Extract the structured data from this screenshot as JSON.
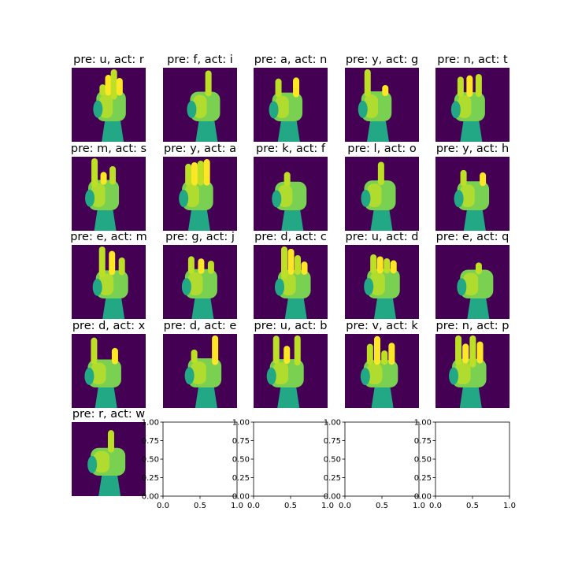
{
  "figure": {
    "background": "#ffffff",
    "colormap": "viridis",
    "image_background": "#440154",
    "hand_colors": [
      "#2a788e",
      "#22a884",
      "#7ad151",
      "#bddf26",
      "#fde725"
    ]
  },
  "panels": [
    {
      "title": "pre: u, act: r",
      "icon": "hand-sign-r"
    },
    {
      "title": "pre: f, act: i",
      "icon": "hand-sign-i"
    },
    {
      "title": "pre: a, act: n",
      "icon": "hand-sign-n"
    },
    {
      "title": "pre: y, act: g",
      "icon": "hand-sign-g"
    },
    {
      "title": "pre: n, act: t",
      "icon": "hand-sign-t"
    },
    {
      "title": "pre: m, act: s",
      "icon": "hand-sign-s"
    },
    {
      "title": "pre: y, act: a",
      "icon": "hand-sign-a"
    },
    {
      "title": "pre: k, act: f",
      "icon": "hand-sign-f"
    },
    {
      "title": "pre: l, act: o",
      "icon": "hand-sign-o"
    },
    {
      "title": "pre: y, act: h",
      "icon": "hand-sign-h"
    },
    {
      "title": "pre: e, act: m",
      "icon": "hand-sign-m"
    },
    {
      "title": "pre: g, act: j",
      "icon": "hand-sign-j"
    },
    {
      "title": "pre: d, act: c",
      "icon": "hand-sign-c"
    },
    {
      "title": "pre: u, act: d",
      "icon": "hand-sign-d"
    },
    {
      "title": "pre: e, act: q",
      "icon": "hand-sign-q"
    },
    {
      "title": "pre: d, act: x",
      "icon": "hand-sign-x"
    },
    {
      "title": "pre: d, act: e",
      "icon": "hand-sign-e"
    },
    {
      "title": "pre: u, act: b",
      "icon": "hand-sign-b"
    },
    {
      "title": "pre: v, act: k",
      "icon": "hand-sign-k"
    },
    {
      "title": "pre: n, act: p",
      "icon": "hand-sign-p"
    },
    {
      "title": "pre: r, act: w",
      "icon": "hand-sign-w"
    }
  ],
  "empty_axes": {
    "count": 4,
    "xlim": [
      0.0,
      1.0
    ],
    "ylim": [
      0.0,
      1.0
    ],
    "xticks": [
      "0.0",
      "0.5",
      "1.0"
    ],
    "yticks": [
      "0.00",
      "0.25",
      "0.50",
      "0.75",
      "1.00"
    ]
  },
  "last_axes": {
    "xticks": [
      "0.0",
      "0.5",
      "1.0"
    ]
  }
}
